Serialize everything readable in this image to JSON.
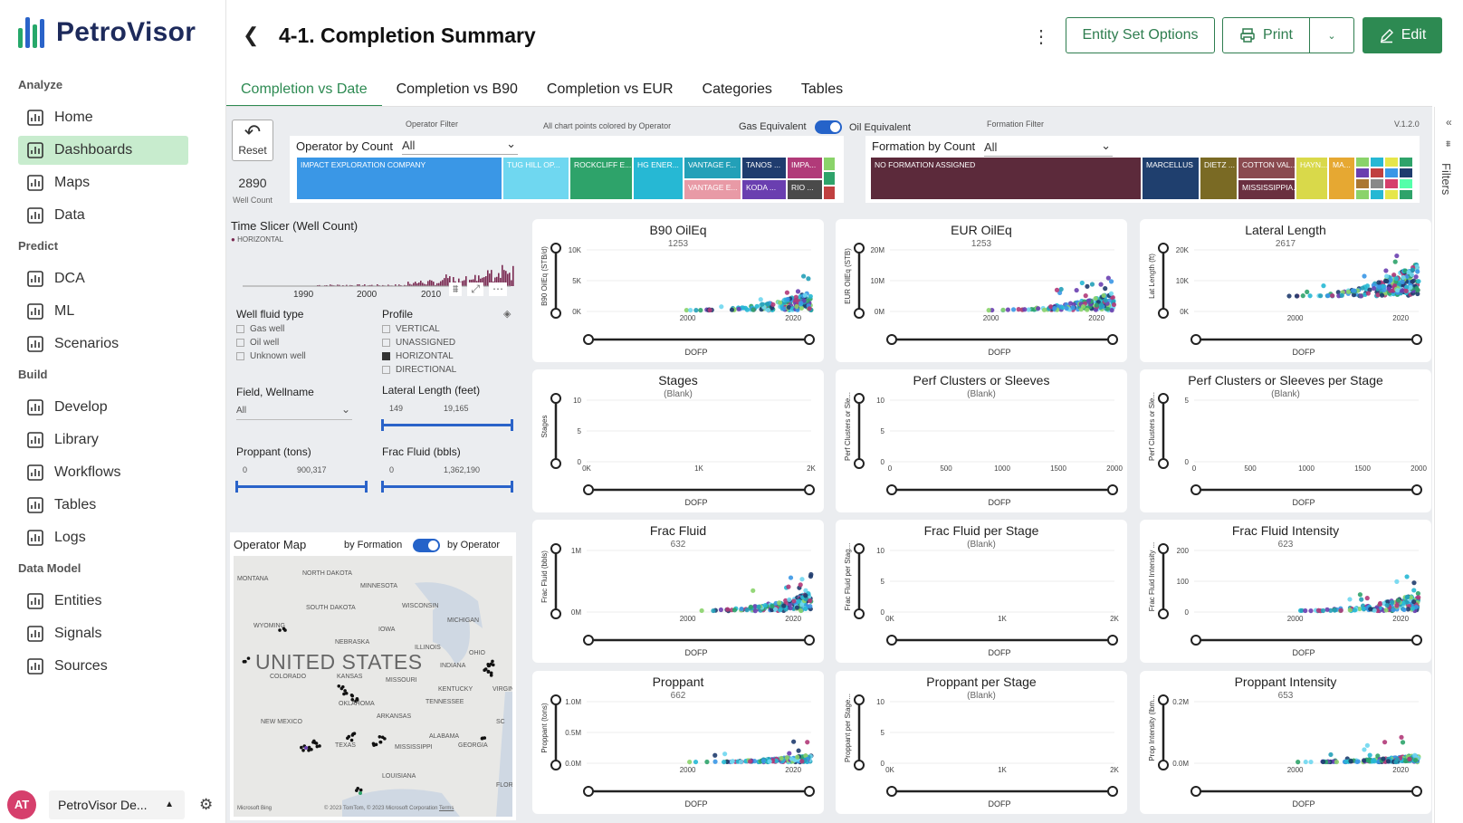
{
  "app": {
    "name": "PetroVisor"
  },
  "sidebar": {
    "sections": [
      {
        "label": "Analyze",
        "items": [
          "Home",
          "Dashboards",
          "Maps",
          "Data"
        ]
      },
      {
        "label": "Predict",
        "items": [
          "DCA",
          "ML",
          "Scenarios"
        ]
      },
      {
        "label": "Build",
        "items": [
          "Develop",
          "Library",
          "Workflows",
          "Tables",
          "Logs"
        ]
      },
      {
        "label": "Data Model",
        "items": [
          "Entities",
          "Signals",
          "Sources"
        ]
      }
    ],
    "active_item": "Dashboards",
    "user": {
      "initials": "AT",
      "workspace": "PetroVisor De..."
    }
  },
  "header": {
    "title": "4-1. Completion Summary",
    "buttons": {
      "entity_set": "Entity Set Options",
      "print": "Print",
      "edit": "Edit"
    }
  },
  "tabs": [
    "Completion vs Date",
    "Completion vs B90",
    "Completion vs EUR",
    "Categories",
    "Tables"
  ],
  "active_tab": "Completion vs Date",
  "report": {
    "version": "V.1.2.0",
    "reset": "Reset",
    "well_count": "2890",
    "well_count_label": "Well Count",
    "operator_filter_label": "Operator Filter",
    "colored_note": "All chart points colored by Operator",
    "gas_equiv": "Gas Equivalent",
    "oil_equiv": "Oil Equivalent",
    "formation_filter_label": "Formation Filter",
    "operator_by_count": "Operator by Count",
    "formation_by_count": "Formation by Count",
    "all": "All",
    "operators": [
      {
        "name": "IMPACT EXPLORATION COMPANY",
        "color": "#3a97e6"
      },
      {
        "name": "TUG HILL OP...",
        "color": "#6fd7f0"
      },
      {
        "name": "ROCKCLIFF E...",
        "color": "#2ea36a"
      },
      {
        "name": "HG ENER...",
        "color": "#26b8d4"
      },
      {
        "name": "VANTAGE F...",
        "color": "#23a0b8"
      },
      {
        "name": "VANTAGE E...",
        "color": "#e89aa6"
      },
      {
        "name": "TANOS ...",
        "color": "#1f3c6e"
      },
      {
        "name": "KODA ...",
        "color": "#6a3fb0"
      },
      {
        "name": "IMPA...",
        "color": "#b13a79"
      },
      {
        "name": "RIO ...",
        "color": "#4a4a4a"
      }
    ],
    "formations": [
      {
        "name": "NO FORMATION ASSIGNED",
        "color": "#5c2a3b"
      },
      {
        "name": "MARCELLUS",
        "color": "#1f3f6e"
      },
      {
        "name": "DIETZ ...",
        "color": "#7a6a24"
      },
      {
        "name": "COTTON VAL...",
        "color": "#8a4a4f"
      },
      {
        "name": "MISSISSIPPIA...",
        "color": "#6a3040"
      },
      {
        "name": "HAYN...",
        "color": "#d9d94a"
      },
      {
        "name": "MA...",
        "color": "#e6a832"
      }
    ],
    "time_slicer": {
      "title": "Time Slicer (Well Count)",
      "legend": "HORIZONTAL",
      "ticks": [
        "1990",
        "2000",
        "2010"
      ]
    },
    "well_fluid": {
      "title": "Well fluid type",
      "options": [
        "Gas well",
        "Oil well",
        "Unknown well"
      ]
    },
    "profile": {
      "title": "Profile",
      "options": [
        {
          "label": "VERTICAL",
          "checked": false
        },
        {
          "label": "UNASSIGNED",
          "checked": false
        },
        {
          "label": "HORIZONTAL",
          "checked": true
        },
        {
          "label": "DIRECTIONAL",
          "checked": false
        }
      ]
    },
    "field_wellname": {
      "title": "Field, Wellname",
      "value": "All"
    },
    "lateral_length": {
      "title": "Lateral Length (feet)",
      "min": "149",
      "max": "19,165"
    },
    "proppant": {
      "title": "Proppant (tons)",
      "min": "0",
      "max": "900,317"
    },
    "frac_fluid": {
      "title": "Frac Fluid (bbls)",
      "min": "0",
      "max": "1,362,190"
    },
    "map": {
      "title": "Operator Map",
      "by_formation": "by Formation",
      "by_operator": "by Operator",
      "country": "UNITED STATES",
      "states": [
        "MONTANA",
        "NORTH DAKOTA",
        "MINNESOTA",
        "SOUTH DAKOTA",
        "WYOMING",
        "WISCONSIN",
        "MICHIGAN",
        "IOWA",
        "NEBRASKA",
        "ILLINOIS",
        "INDIANA",
        "OHIO",
        "COLORADO",
        "KANSAS",
        "MISSOURI",
        "KENTUCKY",
        "VIRGINIA",
        "TENNESSEE",
        "OKLAHOMA",
        "ARKANSAS",
        "NEW MEXICO",
        "TEXAS",
        "MISSISSIPPI",
        "ALABAMA",
        "GEORGIA",
        "LOUISIANA",
        "FLORIDA",
        "SC"
      ],
      "copyright": "© 2023 TomTom, © 2023 Microsoft Corporation",
      "terms": "Terms",
      "bing": "Microsoft Bing"
    }
  },
  "chart_data": [
    {
      "title": "B90 OilEq",
      "subtitle": "1253",
      "type": "scatter",
      "ylabel": "B90 OilEq (STB/d)",
      "xlabel": "DOFP",
      "yticks": [
        "10K",
        "5K",
        "0K"
      ],
      "xticks": [
        "2000",
        "2020"
      ]
    },
    {
      "title": "EUR OilEq",
      "subtitle": "1253",
      "type": "scatter",
      "ylabel": "EUR OilEq (STB)",
      "xlabel": "DOFP",
      "yticks": [
        "20M",
        "10M",
        "0M"
      ],
      "xticks": [
        "2000",
        "2020"
      ]
    },
    {
      "title": "Lateral Length",
      "subtitle": "2617",
      "type": "scatter",
      "ylabel": "Lat Length (ft)",
      "xlabel": "DOFP",
      "yticks": [
        "20K",
        "10K",
        "0K"
      ],
      "xticks": [
        "2000",
        "2020"
      ]
    },
    {
      "title": "Stages",
      "subtitle": "(Blank)",
      "type": "scatter",
      "ylabel": "Stages",
      "xlabel": "DOFP",
      "yticks": [
        "10",
        "5",
        "0"
      ],
      "xticks": [
        "0K",
        "1K",
        "2K"
      ]
    },
    {
      "title": "Perf Clusters or Sleeves",
      "subtitle": "(Blank)",
      "type": "scatter",
      "ylabel": "Perf Clusters or Sle...",
      "xlabel": "DOFP",
      "yticks": [
        "10",
        "5",
        "0"
      ],
      "xticks": [
        "0",
        "500",
        "1000",
        "1500",
        "2000"
      ]
    },
    {
      "title": "Perf Clusters or Sleeves per Stage",
      "subtitle": "(Blank)",
      "type": "scatter",
      "ylabel": "Perf Clusters or Sle...",
      "xlabel": "DOFP",
      "yticks": [
        "5",
        "0"
      ],
      "xticks": [
        "0",
        "500",
        "1000",
        "1500",
        "2000"
      ]
    },
    {
      "title": "Frac Fluid",
      "subtitle": "632",
      "type": "scatter",
      "ylabel": "Frac Fluid (bbls)",
      "xlabel": "DOFP",
      "yticks": [
        "1M",
        "0M"
      ],
      "xticks": [
        "2000",
        "2020"
      ]
    },
    {
      "title": "Frac Fluid per Stage",
      "subtitle": "(Blank)",
      "type": "scatter",
      "ylabel": "Frac Fluid per Stag...",
      "xlabel": "DOFP",
      "yticks": [
        "10",
        "5",
        "0"
      ],
      "xticks": [
        "0K",
        "1K",
        "2K"
      ]
    },
    {
      "title": "Frac Fluid Intensity",
      "subtitle": "623",
      "type": "scatter",
      "ylabel": "Frac Fluid Intensity ...",
      "xlabel": "DOFP",
      "yticks": [
        "200",
        "100",
        "0"
      ],
      "xticks": [
        "2000",
        "2020"
      ]
    },
    {
      "title": "Proppant",
      "subtitle": "662",
      "type": "scatter",
      "ylabel": "Proppant (tons)",
      "xlabel": "DOFP",
      "yticks": [
        "1.0M",
        "0.5M",
        "0.0M"
      ],
      "xticks": [
        "2000",
        "2020"
      ]
    },
    {
      "title": "Proppant per Stage",
      "subtitle": "(Blank)",
      "type": "scatter",
      "ylabel": "Proppant per Stage...",
      "xlabel": "DOFP",
      "yticks": [
        "10",
        "5",
        "0"
      ],
      "xticks": [
        "0K",
        "1K",
        "2K"
      ]
    },
    {
      "title": "Proppant Intensity",
      "subtitle": "653",
      "type": "scatter",
      "ylabel": "Prop Intensity (lbm...",
      "xlabel": "DOFP",
      "yticks": [
        "0.2M",
        "0.0M"
      ],
      "xticks": [
        "2000",
        "2020"
      ]
    }
  ]
}
